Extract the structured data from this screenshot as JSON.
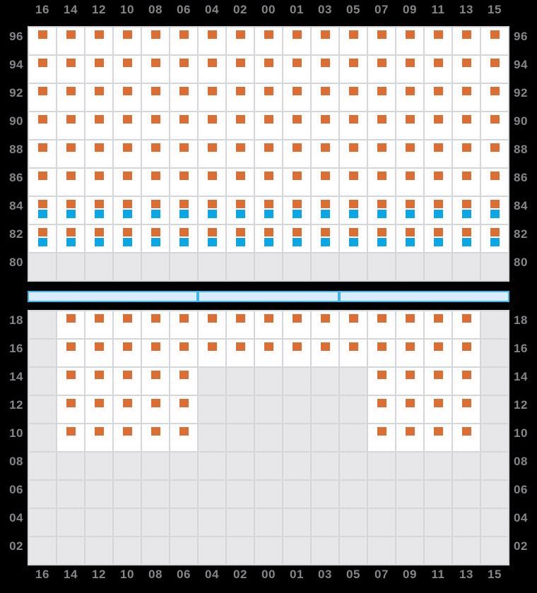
{
  "chart_data": {
    "type": "heatmap",
    "description": "Container vessel bay plan grid: columns across, tiers down; occupied slots show orange (and blue) square markers, empty slots are gray",
    "columns": [
      "16",
      "14",
      "12",
      "10",
      "08",
      "06",
      "04",
      "02",
      "00",
      "01",
      "03",
      "05",
      "07",
      "09",
      "11",
      "13",
      "15"
    ],
    "cell_states_legend": {
      "O": "occupied slot with orange marker",
      "OB": "occupied slot with orange marker over blue marker",
      "E": "empty gray slot"
    },
    "panels": [
      {
        "name": "above-deck",
        "tiers": [
          "96",
          "94",
          "92",
          "90",
          "88",
          "86",
          "84",
          "82",
          "80"
        ],
        "rows": [
          [
            "O",
            "O",
            "O",
            "O",
            "O",
            "O",
            "O",
            "O",
            "O",
            "O",
            "O",
            "O",
            "O",
            "O",
            "O",
            "O",
            "O"
          ],
          [
            "O",
            "O",
            "O",
            "O",
            "O",
            "O",
            "O",
            "O",
            "O",
            "O",
            "O",
            "O",
            "O",
            "O",
            "O",
            "O",
            "O"
          ],
          [
            "O",
            "O",
            "O",
            "O",
            "O",
            "O",
            "O",
            "O",
            "O",
            "O",
            "O",
            "O",
            "O",
            "O",
            "O",
            "O",
            "O"
          ],
          [
            "O",
            "O",
            "O",
            "O",
            "O",
            "O",
            "O",
            "O",
            "O",
            "O",
            "O",
            "O",
            "O",
            "O",
            "O",
            "O",
            "O"
          ],
          [
            "O",
            "O",
            "O",
            "O",
            "O",
            "O",
            "O",
            "O",
            "O",
            "O",
            "O",
            "O",
            "O",
            "O",
            "O",
            "O",
            "O"
          ],
          [
            "O",
            "O",
            "O",
            "O",
            "O",
            "O",
            "O",
            "O",
            "O",
            "O",
            "O",
            "O",
            "O",
            "O",
            "O",
            "O",
            "O"
          ],
          [
            "OB",
            "OB",
            "OB",
            "OB",
            "OB",
            "OB",
            "OB",
            "OB",
            "OB",
            "OB",
            "OB",
            "OB",
            "OB",
            "OB",
            "OB",
            "OB",
            "OB"
          ],
          [
            "OB",
            "OB",
            "OB",
            "OB",
            "OB",
            "OB",
            "OB",
            "OB",
            "OB",
            "OB",
            "OB",
            "OB",
            "OB",
            "OB",
            "OB",
            "OB",
            "OB"
          ],
          [
            "E",
            "E",
            "E",
            "E",
            "E",
            "E",
            "E",
            "E",
            "E",
            "E",
            "E",
            "E",
            "E",
            "E",
            "E",
            "E",
            "E"
          ]
        ]
      },
      {
        "name": "below-deck",
        "tiers": [
          "18",
          "16",
          "14",
          "12",
          "10",
          "08",
          "06",
          "04",
          "02"
        ],
        "rows": [
          [
            "E",
            "O",
            "O",
            "O",
            "O",
            "O",
            "O",
            "O",
            "O",
            "O",
            "O",
            "O",
            "O",
            "O",
            "O",
            "O",
            "E"
          ],
          [
            "E",
            "O",
            "O",
            "O",
            "O",
            "O",
            "O",
            "O",
            "O",
            "O",
            "O",
            "O",
            "O",
            "O",
            "O",
            "O",
            "E"
          ],
          [
            "E",
            "O",
            "O",
            "O",
            "O",
            "O",
            "E",
            "E",
            "E",
            "E",
            "E",
            "E",
            "O",
            "O",
            "O",
            "O",
            "E"
          ],
          [
            "E",
            "O",
            "O",
            "O",
            "O",
            "O",
            "E",
            "E",
            "E",
            "E",
            "E",
            "E",
            "O",
            "O",
            "O",
            "O",
            "E"
          ],
          [
            "E",
            "O",
            "O",
            "O",
            "O",
            "O",
            "E",
            "E",
            "E",
            "E",
            "E",
            "E",
            "O",
            "O",
            "O",
            "O",
            "E"
          ],
          [
            "E",
            "E",
            "E",
            "E",
            "E",
            "E",
            "E",
            "E",
            "E",
            "E",
            "E",
            "E",
            "E",
            "E",
            "E",
            "E",
            "E"
          ],
          [
            "E",
            "E",
            "E",
            "E",
            "E",
            "E",
            "E",
            "E",
            "E",
            "E",
            "E",
            "E",
            "E",
            "E",
            "E",
            "E",
            "E"
          ],
          [
            "E",
            "E",
            "E",
            "E",
            "E",
            "E",
            "E",
            "E",
            "E",
            "E",
            "E",
            "E",
            "E",
            "E",
            "E",
            "E",
            "E"
          ],
          [
            "E",
            "E",
            "E",
            "E",
            "E",
            "E",
            "E",
            "E",
            "E",
            "E",
            "E",
            "E",
            "E",
            "E",
            "E",
            "E",
            "E"
          ]
        ]
      }
    ],
    "hatch_bar": {
      "segment_column_spans": [
        6,
        5,
        6
      ]
    },
    "colors": {
      "background": "#000000",
      "grid_border": "#d6d6da",
      "cell_white": "#ffffff",
      "cell_gray": "#e7e7e9",
      "marker_orange": "#dd6e33",
      "marker_blue": "#0aa7e6",
      "hatch_bar_fill": "#daecf9",
      "hatch_bar_border": "#3fb6ec",
      "label_gray": "#85858a"
    }
  }
}
